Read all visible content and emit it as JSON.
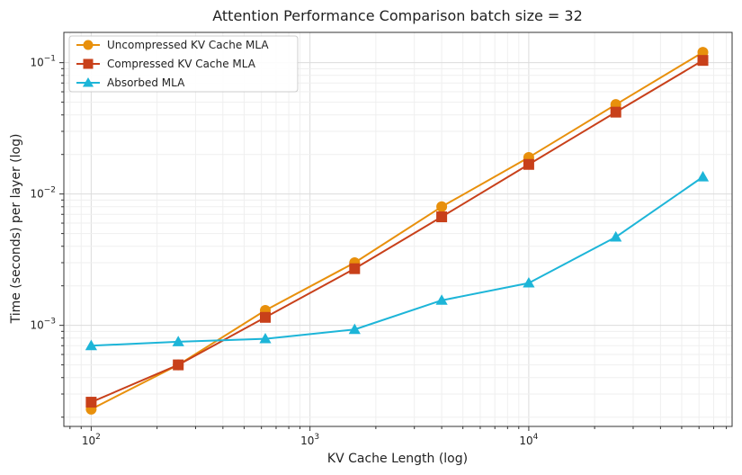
{
  "chart_data": {
    "type": "line",
    "title": "Attention Performance Comparison batch size = 32",
    "xlabel": "KV Cache Length (log)",
    "ylabel": "Time (seconds) per layer (log)",
    "xscale": "log",
    "yscale": "log",
    "xlim": [
      75,
      85000
    ],
    "ylim": [
      0.00017,
      0.17
    ],
    "x_ticks": [
      {
        "value": 100,
        "label": "10",
        "exp": "2"
      },
      {
        "value": 1000,
        "label": "10",
        "exp": "3"
      },
      {
        "value": 10000,
        "label": "10",
        "exp": "4"
      }
    ],
    "y_ticks": [
      {
        "value": 0.001,
        "label": "10",
        "exp": "−3"
      },
      {
        "value": 0.01,
        "label": "10",
        "exp": "−2"
      },
      {
        "value": 0.1,
        "label": "10",
        "exp": "−1"
      }
    ],
    "grid": true,
    "legend_position": "top-left",
    "x": [
      100,
      250,
      625,
      1600,
      4000,
      10000,
      25000,
      62500
    ],
    "series": [
      {
        "name": "Uncompressed KV Cache MLA",
        "color": "#E8900C",
        "marker": "circle",
        "values": [
          0.00023,
          0.0005,
          0.0013,
          0.003,
          0.008,
          0.019,
          0.048,
          0.12
        ]
      },
      {
        "name": "Compressed KV Cache MLA",
        "color": "#C8401A",
        "marker": "square",
        "values": [
          0.00026,
          0.0005,
          0.00115,
          0.0027,
          0.0067,
          0.0168,
          0.042,
          0.104
        ]
      },
      {
        "name": "Absorbed MLA",
        "color": "#1DB5D8",
        "marker": "triangle",
        "values": [
          0.0007,
          0.00075,
          0.00079,
          0.00093,
          0.00155,
          0.0021,
          0.0047,
          0.0135
        ]
      }
    ]
  }
}
